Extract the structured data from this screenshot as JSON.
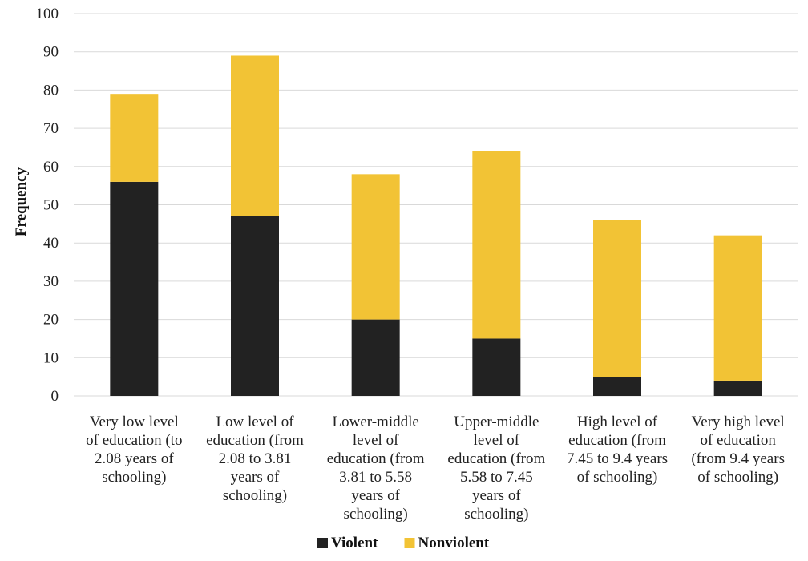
{
  "chart_data": {
    "type": "bar",
    "stacked": true,
    "title": "",
    "xlabel": "",
    "ylabel": "Frequency",
    "ylim": [
      0,
      100
    ],
    "yticks": [
      0,
      10,
      20,
      30,
      40,
      50,
      60,
      70,
      80,
      90,
      100
    ],
    "grid": true,
    "legend_position": "bottom",
    "categories": [
      [
        "Very low level",
        "of education (to",
        "2.08 years of",
        "schooling)"
      ],
      [
        "Low level of",
        "education (from",
        "2.08 to 3.81",
        "years of",
        "schooling)"
      ],
      [
        "Lower-middle",
        "level of",
        "education (from",
        "3.81 to 5.58",
        "years of",
        "schooling)"
      ],
      [
        "Upper-middle",
        "level of",
        "education (from",
        "5.58 to 7.45",
        "years of",
        "schooling)"
      ],
      [
        "High level of",
        "education (from",
        "7.45 to 9.4 years",
        "of schooling)"
      ],
      [
        "Very high level",
        "of education",
        "(from 9.4 years",
        "of schooling)"
      ]
    ],
    "series": [
      {
        "name": "Violent",
        "color": "#222222",
        "values": [
          56,
          47,
          20,
          15,
          5,
          4
        ]
      },
      {
        "name": "Nonviolent",
        "color": "#f2c335",
        "values": [
          23,
          42,
          38,
          49,
          41,
          38
        ]
      }
    ]
  }
}
